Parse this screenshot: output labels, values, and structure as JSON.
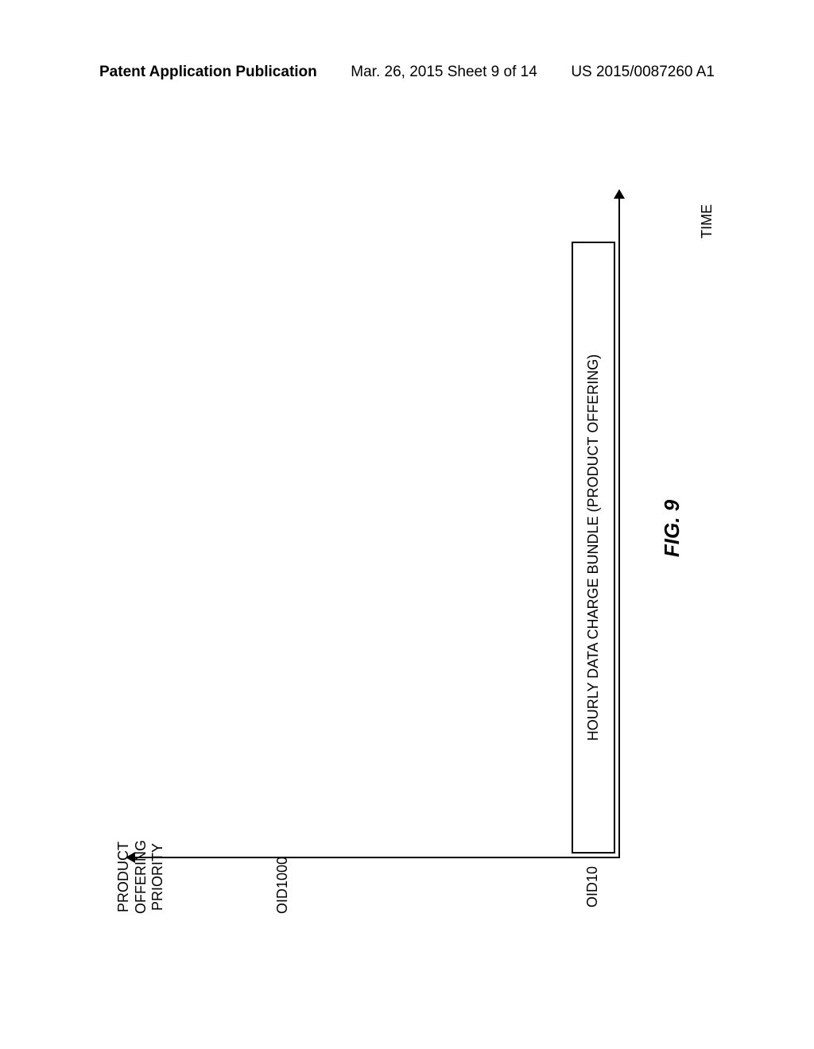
{
  "header": {
    "left": "Patent Application Publication",
    "center": "Mar. 26, 2015  Sheet 9 of 14",
    "right": "US 2015/0087260 A1"
  },
  "chart": {
    "type": "bar",
    "y_axis_title_line1": "PRODUCT",
    "y_axis_title_line2": "OFFERING",
    "y_axis_title_line3": "PRIORITY",
    "x_axis_title": "TIME",
    "y_ticks": [
      "OID1000",
      "OID10"
    ],
    "bar_label": "HOURLY DATA CHARGE BUNDLE (PRODUCT OFFERING)",
    "figure_label": "FIG. 9",
    "axis_color": "#000000",
    "background_color": "#ffffff",
    "bar_border_color": "#000000",
    "font_size_axis": 18,
    "font_size_figlabel": 26
  }
}
